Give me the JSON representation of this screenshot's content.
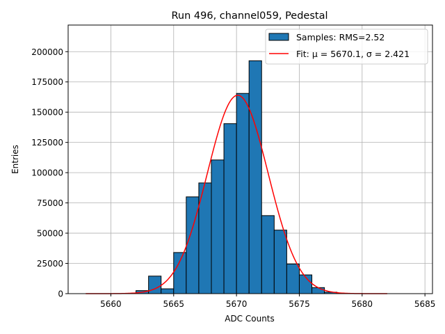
{
  "chart_data": {
    "type": "bar",
    "title": "Run 496, channel059, Pedestal",
    "xlabel": "ADC Counts",
    "ylabel": "Entries",
    "xlim": [
      5656.6,
      5685.6
    ],
    "ylim": [
      0,
      222000
    ],
    "grid": true,
    "x_ticks": [
      5660,
      5665,
      5670,
      5675,
      5680,
      5685
    ],
    "y_ticks": [
      0,
      25000,
      50000,
      75000,
      100000,
      125000,
      150000,
      175000,
      200000
    ],
    "bin_width": 1,
    "bin_edges": [
      5662,
      5663,
      5664,
      5665,
      5666,
      5667,
      5668,
      5669,
      5670,
      5671,
      5672,
      5673,
      5674,
      5675,
      5676,
      5677,
      5678
    ],
    "values": [
      2500,
      14500,
      4000,
      34000,
      80000,
      91500,
      110500,
      140500,
      165500,
      192500,
      64500,
      52500,
      24500,
      15500,
      5000,
      1200
    ],
    "bar_color": "#1f77b4",
    "fit": {
      "mu": 5670.1,
      "sigma": 2.421,
      "amplitude": 164000,
      "x_range": [
        5658,
        5682
      ],
      "color": "#ff0000"
    },
    "legend": {
      "position": "top-right",
      "entries": [
        {
          "label": "Samples: RMS=2.52",
          "kind": "patch",
          "color": "#1f77b4"
        },
        {
          "label": "Fit: μ = 5670.1, σ = 2.421",
          "kind": "line",
          "color": "#ff0000"
        }
      ]
    }
  }
}
